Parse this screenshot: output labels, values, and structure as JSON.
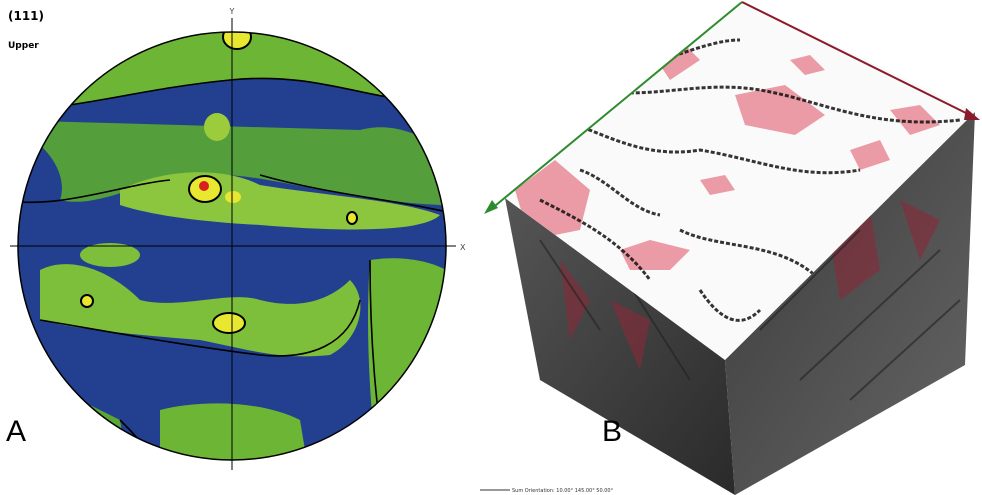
{
  "panel_a": {
    "plane": "(111)",
    "hemisphere": "Upper",
    "y_axis": "Y",
    "x_axis": "X",
    "label": "A"
  },
  "panel_b": {
    "label": "B",
    "caption": "Sum Orientation: 10.00°  145.00°  50.00°"
  }
}
